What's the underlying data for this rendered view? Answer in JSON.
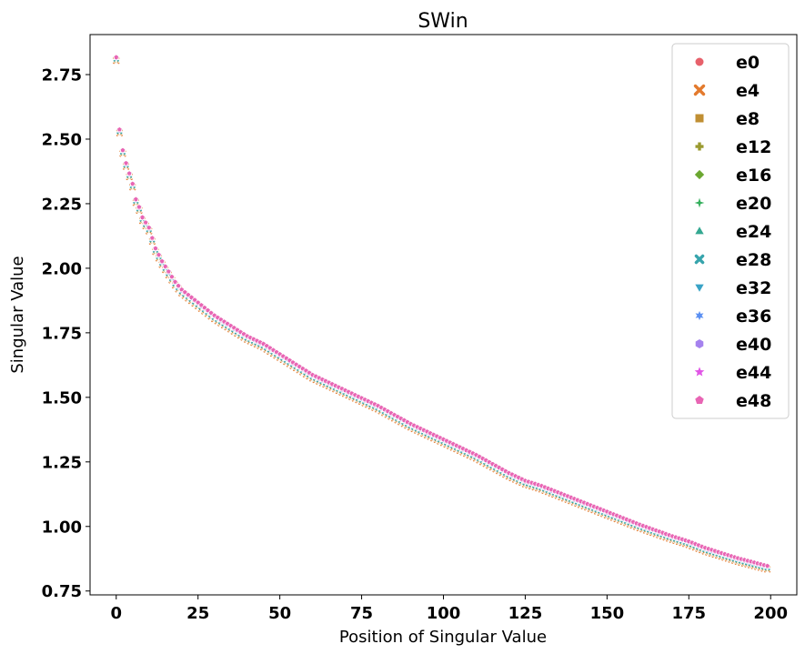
{
  "chart_data": {
    "type": "scatter",
    "title": "SWin",
    "xlabel": "Position of Singular Value",
    "ylabel": "Singular Value",
    "xlim": [
      -8,
      208
    ],
    "ylim": [
      0.735,
      2.905
    ],
    "xticks": [
      0,
      25,
      50,
      75,
      100,
      125,
      150,
      175,
      200
    ],
    "xtick_labels": [
      "0",
      "25",
      "50",
      "75",
      "100",
      "125",
      "150",
      "175",
      "200"
    ],
    "yticks": [
      0.75,
      1.0,
      1.25,
      1.5,
      1.75,
      2.0,
      2.25,
      2.5,
      2.75
    ],
    "ytick_labels": [
      "0.75",
      "1.00",
      "1.25",
      "1.50",
      "1.75",
      "2.00",
      "2.25",
      "2.50",
      "2.75"
    ],
    "grid": false,
    "legend_position": "top-right",
    "x_range": [
      0,
      199
    ],
    "curve": {
      "x": [
        0,
        1,
        2,
        3,
        4,
        5,
        6,
        7,
        8,
        9,
        10,
        12,
        14,
        16,
        18,
        20,
        25,
        30,
        35,
        40,
        45,
        50,
        60,
        70,
        75,
        80,
        90,
        100,
        110,
        120,
        125,
        130,
        140,
        150,
        160,
        170,
        175,
        180,
        190,
        199
      ],
      "y": [
        2.81,
        2.53,
        2.45,
        2.4,
        2.36,
        2.32,
        2.26,
        2.23,
        2.19,
        2.17,
        2.15,
        2.07,
        2.02,
        1.98,
        1.94,
        1.91,
        1.86,
        1.81,
        1.77,
        1.73,
        1.7,
        1.66,
        1.58,
        1.52,
        1.49,
        1.46,
        1.39,
        1.33,
        1.27,
        1.2,
        1.17,
        1.15,
        1.1,
        1.05,
        1.0,
        0.955,
        0.935,
        0.91,
        0.87,
        0.84
      ]
    },
    "series": [
      {
        "name": "e0",
        "color": "#e7616b",
        "marker": "circle",
        "icon": "circle-marker"
      },
      {
        "name": "e4",
        "color": "#e37a2d",
        "marker": "x",
        "icon": "x-marker"
      },
      {
        "name": "e8",
        "color": "#c08f33",
        "marker": "square",
        "icon": "square-marker"
      },
      {
        "name": "e12",
        "color": "#9a9a2f",
        "marker": "plus",
        "icon": "plus-marker"
      },
      {
        "name": "e16",
        "color": "#6ba731",
        "marker": "diamond",
        "icon": "diamond-marker"
      },
      {
        "name": "e20",
        "color": "#34af5c",
        "marker": "star4",
        "icon": "star-marker"
      },
      {
        "name": "e24",
        "color": "#34a891",
        "marker": "triangle-up",
        "icon": "triangle-up-marker"
      },
      {
        "name": "e28",
        "color": "#36a4ac",
        "marker": "x-small",
        "icon": "x-small-marker"
      },
      {
        "name": "e32",
        "color": "#39a3c6",
        "marker": "triangle-down",
        "icon": "triangle-down-marker"
      },
      {
        "name": "e36",
        "color": "#5a8ff2",
        "marker": "star6",
        "icon": "asterisk-marker"
      },
      {
        "name": "e40",
        "color": "#a582ee",
        "marker": "hexagon",
        "icon": "hexagon-marker"
      },
      {
        "name": "e44",
        "color": "#e156e6",
        "marker": "star",
        "icon": "star5-marker"
      },
      {
        "name": "e48",
        "color": "#e865b4",
        "marker": "pentagon",
        "icon": "pentagon-marker"
      }
    ]
  }
}
